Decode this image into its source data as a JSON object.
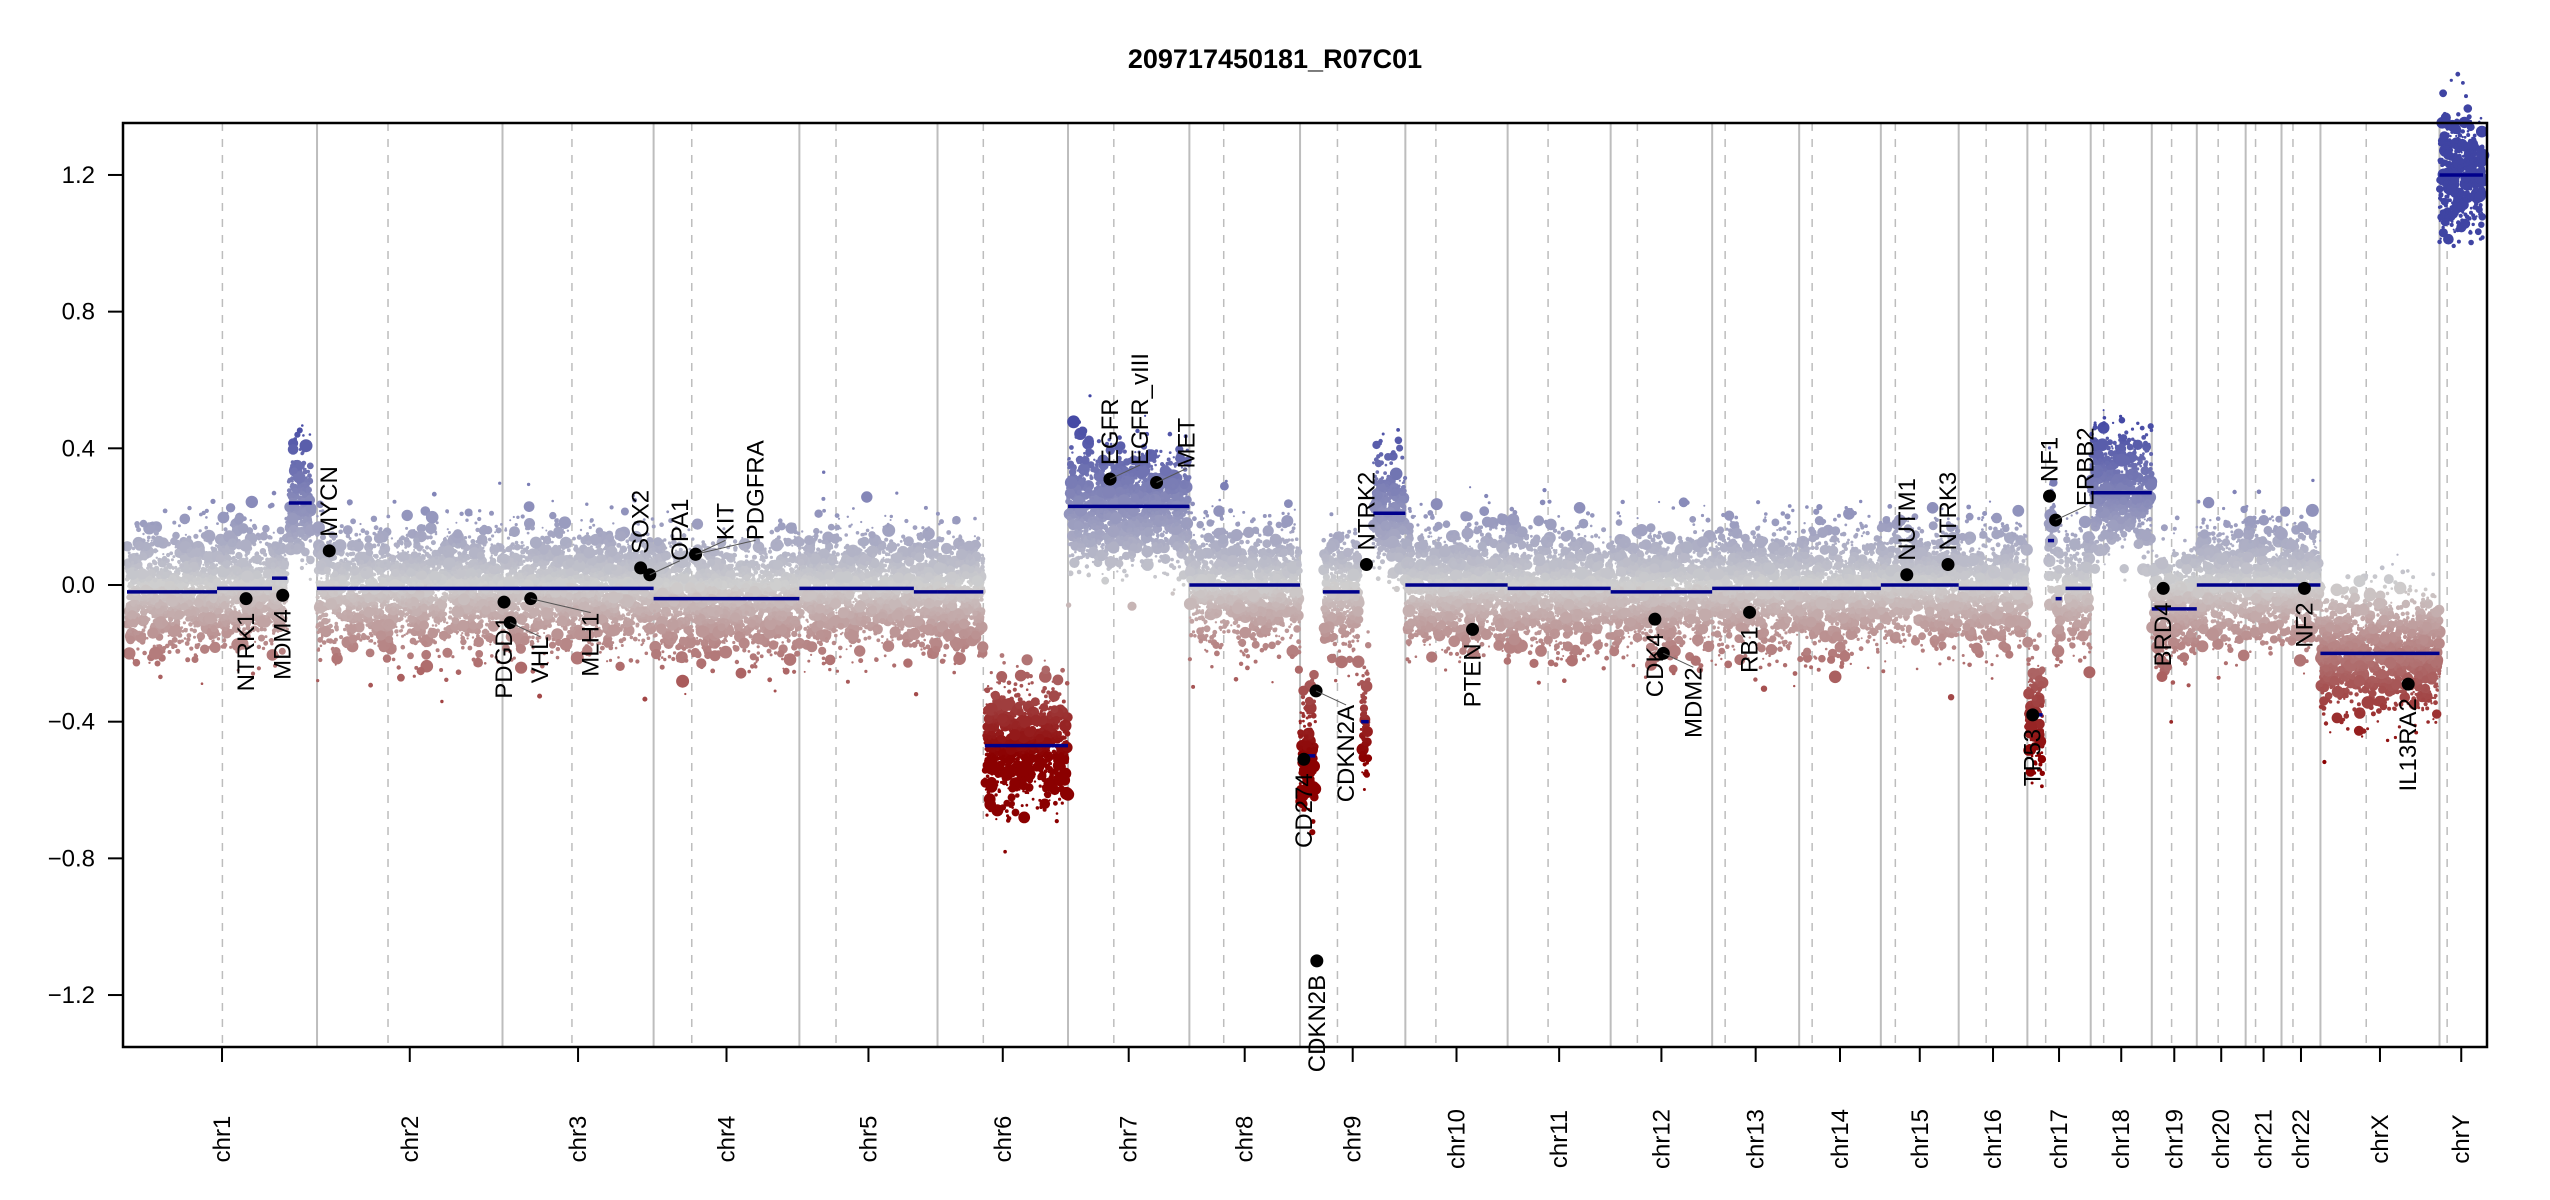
{
  "chart_data": {
    "type": "scatter",
    "title": "209717450181_R07C01",
    "xlabel": "",
    "ylabel": "",
    "ylim": [
      -1.35,
      1.35
    ],
    "yticks": [
      -1.2,
      -0.8,
      -0.4,
      0.0,
      0.4,
      0.8,
      1.2
    ],
    "ytick_labels": [
      "−1.2",
      "−0.8",
      "−0.4",
      "0.0",
      "0.4",
      "0.8",
      "1.2"
    ],
    "grid": false,
    "chromosomes": [
      {
        "name": "chr1",
        "size": 249,
        "centromere": 125
      },
      {
        "name": "chr2",
        "size": 243,
        "centromere": 93
      },
      {
        "name": "chr3",
        "size": 198,
        "centromere": 91
      },
      {
        "name": "chr4",
        "size": 191,
        "centromere": 50
      },
      {
        "name": "chr5",
        "size": 181,
        "centromere": 48
      },
      {
        "name": "chr6",
        "size": 171,
        "centromere": 60
      },
      {
        "name": "chr7",
        "size": 159,
        "centromere": 60
      },
      {
        "name": "chr8",
        "size": 145,
        "centromere": 45
      },
      {
        "name": "chr9",
        "size": 138,
        "centromere": 49
      },
      {
        "name": "chr10",
        "size": 134,
        "centromere": 40
      },
      {
        "name": "chr11",
        "size": 135,
        "centromere": 53
      },
      {
        "name": "chr12",
        "size": 133,
        "centromere": 35
      },
      {
        "name": "chr13",
        "size": 114,
        "centromere": 17
      },
      {
        "name": "chr14",
        "size": 107,
        "centromere": 17
      },
      {
        "name": "chr15",
        "size": 102,
        "centromere": 19
      },
      {
        "name": "chr16",
        "size": 90,
        "centromere": 36
      },
      {
        "name": "chr17",
        "size": 83,
        "centromere": 24
      },
      {
        "name": "chr18",
        "size": 80,
        "centromere": 17
      },
      {
        "name": "chr19",
        "size": 59,
        "centromere": 26
      },
      {
        "name": "chr20",
        "size": 64,
        "centromere": 28
      },
      {
        "name": "chr21",
        "size": 47,
        "centromere": 13
      },
      {
        "name": "chr22",
        "size": 51,
        "centromere": 15
      },
      {
        "name": "chrX",
        "size": 156,
        "centromere": 60
      },
      {
        "name": "chrY",
        "size": 57,
        "centromere": 10
      }
    ],
    "segments": [
      {
        "chr": "chr1",
        "start": 0,
        "end": 118,
        "value": -0.02
      },
      {
        "chr": "chr1",
        "start": 118,
        "end": 190,
        "value": -0.01
      },
      {
        "chr": "chr1",
        "start": 190,
        "end": 210,
        "value": 0.02
      },
      {
        "chr": "chr1",
        "start": 212,
        "end": 242,
        "value": 0.24
      },
      {
        "chr": "chr2",
        "start": 0,
        "end": 243,
        "value": -0.01
      },
      {
        "chr": "chr3",
        "start": 0,
        "end": 198,
        "value": -0.01
      },
      {
        "chr": "chr4",
        "start": 0,
        "end": 191,
        "value": -0.04
      },
      {
        "chr": "chr5",
        "start": 0,
        "end": 150,
        "value": -0.01
      },
      {
        "chr": "chr5",
        "start": 150,
        "end": 181,
        "value": -0.02
      },
      {
        "chr": "chr6",
        "start": 0,
        "end": 60,
        "value": -0.02
      },
      {
        "chr": "chr6",
        "start": 62,
        "end": 171,
        "value": -0.47
      },
      {
        "chr": "chr7",
        "start": 0,
        "end": 159,
        "value": 0.23
      },
      {
        "chr": "chr8",
        "start": 0,
        "end": 145,
        "value": 0.0
      },
      {
        "chr": "chr9",
        "start": 0,
        "end": 20,
        "value": -0.5
      },
      {
        "chr": "chr9",
        "start": 30,
        "end": 78,
        "value": -0.02
      },
      {
        "chr": "chr9",
        "start": 80,
        "end": 90,
        "value": -0.4
      },
      {
        "chr": "chr9",
        "start": 96,
        "end": 138,
        "value": 0.21
      },
      {
        "chr": "chr10",
        "start": 0,
        "end": 134,
        "value": 0.0
      },
      {
        "chr": "chr11",
        "start": 0,
        "end": 135,
        "value": -0.01
      },
      {
        "chr": "chr12",
        "start": 0,
        "end": 133,
        "value": -0.02
      },
      {
        "chr": "chr13",
        "start": 0,
        "end": 114,
        "value": -0.01
      },
      {
        "chr": "chr14",
        "start": 0,
        "end": 107,
        "value": -0.01
      },
      {
        "chr": "chr15",
        "start": 0,
        "end": 102,
        "value": 0.0
      },
      {
        "chr": "chr16",
        "start": 0,
        "end": 90,
        "value": -0.01
      },
      {
        "chr": "chr17",
        "start": 0,
        "end": 20,
        "value": -0.38
      },
      {
        "chr": "chr17",
        "start": 27,
        "end": 35,
        "value": 0.13
      },
      {
        "chr": "chr17",
        "start": 37,
        "end": 45,
        "value": -0.04
      },
      {
        "chr": "chr17",
        "start": 50,
        "end": 83,
        "value": -0.01
      },
      {
        "chr": "chr18",
        "start": 0,
        "end": 80,
        "value": 0.27
      },
      {
        "chr": "chr19",
        "start": 0,
        "end": 59,
        "value": -0.07
      },
      {
        "chr": "chr20",
        "start": 0,
        "end": 64,
        "value": 0.0
      },
      {
        "chr": "chr21",
        "start": 0,
        "end": 47,
        "value": 0.0
      },
      {
        "chr": "chr22",
        "start": 0,
        "end": 51,
        "value": 0.0
      },
      {
        "chr": "chrX",
        "start": 0,
        "end": 156,
        "value": -0.2
      },
      {
        "chr": "chrY",
        "start": 0,
        "end": 57,
        "value": 1.2
      }
    ],
    "genes": [
      {
        "name": "NTRK1",
        "chr": "chr1",
        "pos": 156,
        "value": -0.04,
        "label_side": "below"
      },
      {
        "name": "MDM4",
        "chr": "chr1",
        "pos": 204,
        "value": -0.03,
        "label_side": "below"
      },
      {
        "name": "MYCN",
        "chr": "chr2",
        "pos": 16,
        "value": 0.1,
        "label_side": "above"
      },
      {
        "name": "PDGD1",
        "chr": "chr3",
        "pos": 2,
        "value": -0.05,
        "label_side": "below"
      },
      {
        "name": "VHL",
        "chr": "chr3",
        "pos": 10,
        "value": -0.11,
        "label_side": "below"
      },
      {
        "name": "MLH1",
        "chr": "chr3",
        "pos": 37,
        "value": -0.04,
        "label_side": "below"
      },
      {
        "name": "SOX2",
        "chr": "chr3",
        "pos": 181,
        "value": 0.05,
        "label_side": "above"
      },
      {
        "name": "OPA1",
        "chr": "chr3",
        "pos": 193,
        "value": 0.03,
        "label_side": "above"
      },
      {
        "name": "KIT",
        "chr": "chr4",
        "pos": 55,
        "value": 0.09,
        "label_side": "above"
      },
      {
        "name": "PDGFRA",
        "chr": "chr4",
        "pos": 55,
        "value": 0.09,
        "label_side": "above"
      },
      {
        "name": "EGFR",
        "chr": "chr7",
        "pos": 55,
        "value": 0.31,
        "label_side": "above"
      },
      {
        "name": "EGFR_vIII",
        "chr": "chr7",
        "pos": 55,
        "value": 0.31,
        "label_side": "above"
      },
      {
        "name": "MET",
        "chr": "chr7",
        "pos": 116,
        "value": 0.3,
        "label_side": "above"
      },
      {
        "name": "CD274",
        "chr": "chr9",
        "pos": 5,
        "value": -0.51,
        "label_side": "below"
      },
      {
        "name": "CDKN2A",
        "chr": "chr9",
        "pos": 21,
        "value": -0.31,
        "label_side": "below"
      },
      {
        "name": "CDKN2B",
        "chr": "chr9",
        "pos": 22,
        "value": -1.1,
        "label_side": "below"
      },
      {
        "name": "NTRK2",
        "chr": "chr9",
        "pos": 87,
        "value": 0.06,
        "label_side": "above"
      },
      {
        "name": "PTEN",
        "chr": "chr10",
        "pos": 88,
        "value": -0.13,
        "label_side": "below"
      },
      {
        "name": "CDK4",
        "chr": "chr12",
        "pos": 58,
        "value": -0.1,
        "label_side": "below"
      },
      {
        "name": "MDM2",
        "chr": "chr12",
        "pos": 69,
        "value": -0.2,
        "label_side": "below"
      },
      {
        "name": "RB1",
        "chr": "chr13",
        "pos": 49,
        "value": -0.08,
        "label_side": "below"
      },
      {
        "name": "NUTM1",
        "chr": "chr15",
        "pos": 34,
        "value": 0.03,
        "label_side": "above"
      },
      {
        "name": "NTRK3",
        "chr": "chr15",
        "pos": 88,
        "value": 0.06,
        "label_side": "above"
      },
      {
        "name": "TP53",
        "chr": "chr17",
        "pos": 7,
        "value": -0.38,
        "label_side": "below"
      },
      {
        "name": "NF1",
        "chr": "chr17",
        "pos": 29,
        "value": 0.26,
        "label_side": "above"
      },
      {
        "name": "ERBB2",
        "chr": "chr17",
        "pos": 37,
        "value": 0.19,
        "label_side": "above"
      },
      {
        "name": "BRD4",
        "chr": "chr19",
        "pos": 15,
        "value": -0.01,
        "label_side": "below"
      },
      {
        "name": "NF2",
        "chr": "chr22",
        "pos": 30,
        "value": -0.01,
        "label_side": "below"
      },
      {
        "name": "IL13RA2",
        "chr": "chrX",
        "pos": 115,
        "value": -0.29,
        "label_side": "below"
      }
    ],
    "colors": {
      "gain": "#3f44a3",
      "neutral": "#cfcfcf",
      "loss": "#8b0000",
      "segment": "#00008b",
      "gene_point": "#000000",
      "chr_boundary": "#bdbdbd",
      "centromere": "#bdbdbd"
    }
  }
}
